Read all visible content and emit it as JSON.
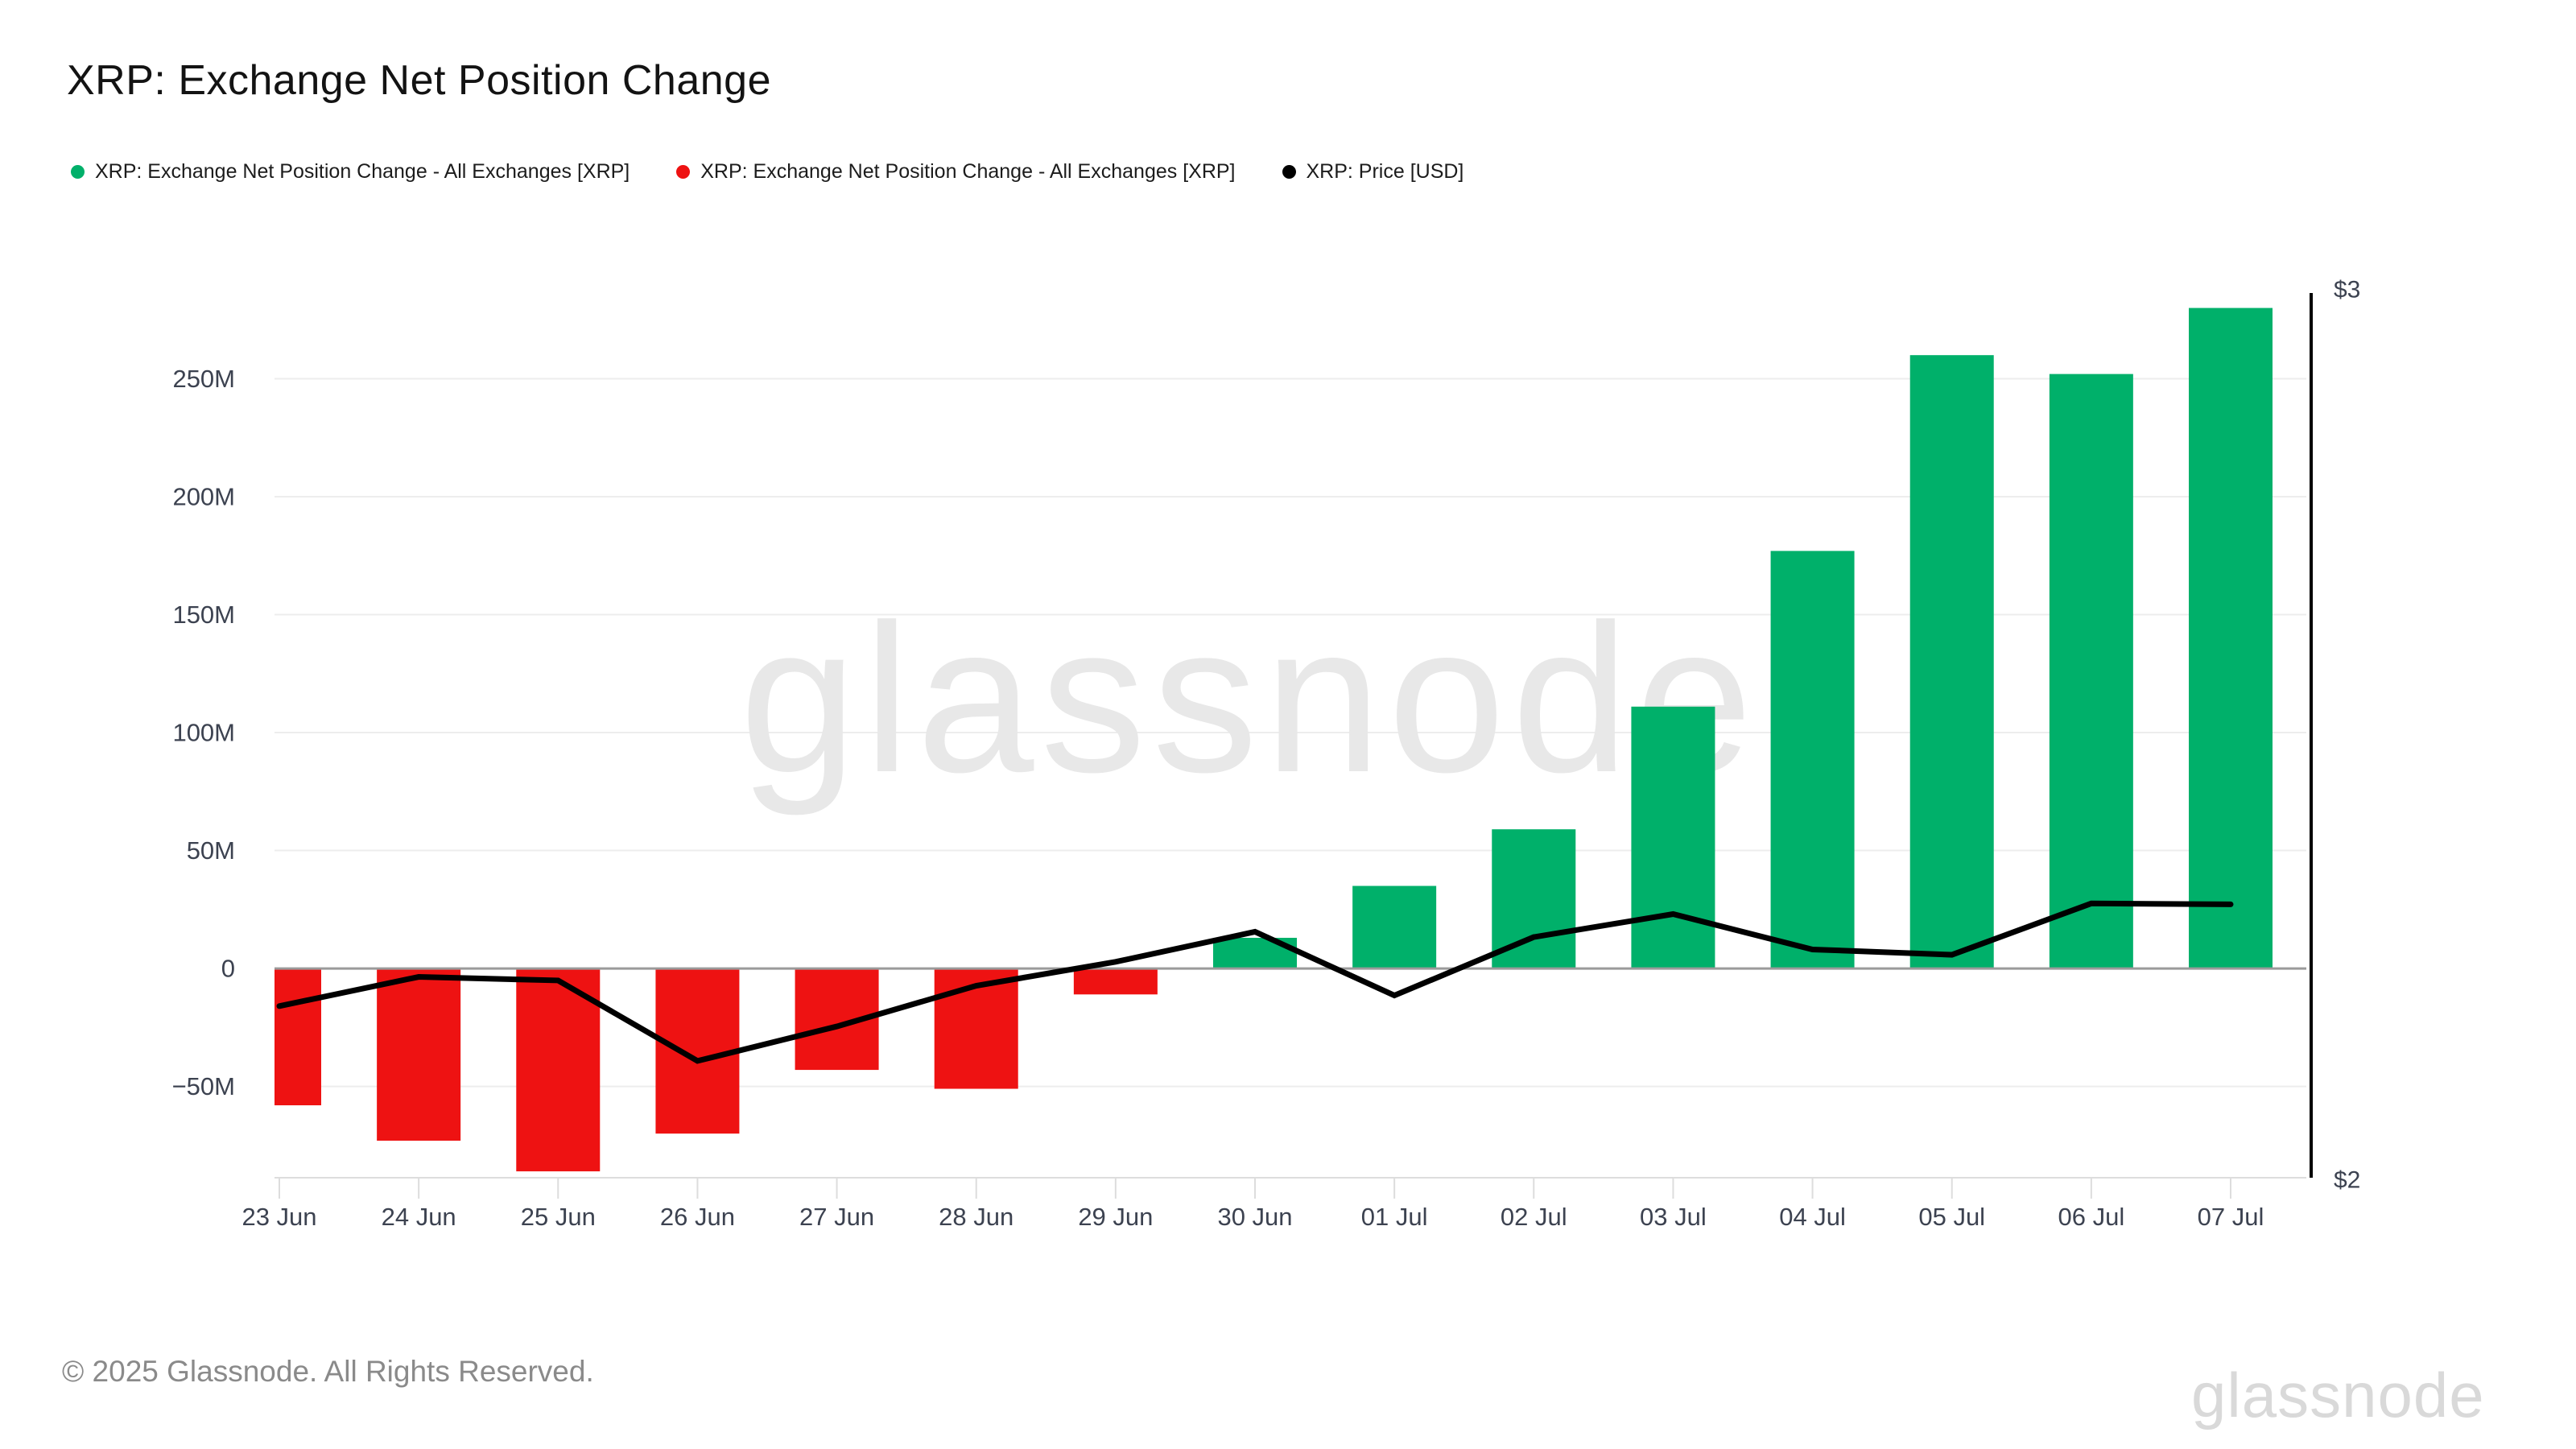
{
  "title": "XRP: Exchange Net Position Change",
  "legend": {
    "items": [
      {
        "label": "XRP: Exchange Net Position Change - All Exchanges [XRP]",
        "color": "#00b06a"
      },
      {
        "label": "XRP: Exchange Net Position Change - All Exchanges [XRP]",
        "color": "#ee1212"
      },
      {
        "label": "XRP: Price [USD]",
        "color": "#000000"
      }
    ]
  },
  "watermark": "glassnode",
  "footer": {
    "copyright": "© 2025 Glassnode. All Rights Reserved.",
    "brand": "glassnode"
  },
  "colors": {
    "bar_positive": "#00b06a",
    "bar_negative": "#ee1212",
    "price_line": "#000000",
    "gridline": "#ededed",
    "zero_line": "#9a9a9a",
    "axis_bottom": "#dddddd",
    "axis_text": "#3c4250",
    "watermark": "#e8e8e8"
  },
  "chart_data": {
    "type": "bar",
    "title": "XRP: Exchange Net Position Change",
    "categories": [
      "23 Jun",
      "24 Jun",
      "25 Jun",
      "26 Jun",
      "27 Jun",
      "28 Jun",
      "29 Jun",
      "30 Jun",
      "01 Jul",
      "02 Jul",
      "03 Jul",
      "04 Jul",
      "05 Jul",
      "06 Jul",
      "07 Jul"
    ],
    "series": [
      {
        "name": "XRP: Exchange Net Position Change - All Exchanges [XRP]",
        "type": "bar",
        "axis": "left",
        "values": [
          -58000000,
          -73000000,
          -86000000,
          -70000000,
          -43000000,
          -51000000,
          -11000000,
          13000000,
          35000000,
          59000000,
          111000000,
          177000000,
          260000000,
          252000000,
          280000000
        ]
      },
      {
        "name": "XRP: Price [USD]",
        "type": "line",
        "axis": "right",
        "values": [
          2.194,
          2.227,
          2.223,
          2.132,
          2.171,
          2.217,
          2.244,
          2.278,
          2.206,
          2.272,
          2.298,
          2.258,
          2.252,
          2.31,
          2.309
        ]
      }
    ],
    "left_axis": {
      "tick_labels": [
        "250M",
        "200M",
        "150M",
        "100M",
        "50M",
        "0",
        "−50M"
      ],
      "tick_values": [
        250000000,
        200000000,
        150000000,
        100000000,
        50000000,
        0,
        -50000000
      ],
      "ylim": [
        -88700000,
        287700000
      ]
    },
    "right_axis": {
      "tick_labels": [
        "$3",
        "$2"
      ],
      "tick_values": [
        3,
        2
      ],
      "ylim": [
        2,
        3
      ]
    },
    "grid": true,
    "legend_position": "top"
  }
}
